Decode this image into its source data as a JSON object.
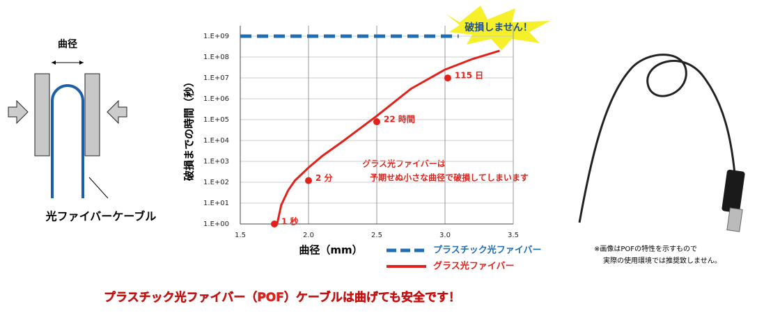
{
  "diagram": {
    "width_label": "曲径",
    "cable_label": "光ファイバーケーブル"
  },
  "chart_data": {
    "type": "line",
    "log_scale": true,
    "grid": true,
    "x_label": "曲径（mm）",
    "y_label": "破損までの時間（秒）",
    "xlim": [
      1.5,
      3.5
    ],
    "xticks": [
      1.5,
      {
        "value": 2,
        "label": "2.0"
      },
      2.5,
      {
        "value": 3,
        "label": "3.0"
      },
      3.5
    ],
    "ylim": [
      1,
      1000000000
    ],
    "yticks": [
      {
        "value": 1,
        "label": "1.E+00"
      },
      {
        "value": 10,
        "label": "1.E+01"
      },
      {
        "value": 100,
        "label": "1.E+02"
      },
      {
        "value": 1000,
        "label": "1.E+03"
      },
      {
        "value": 10000,
        "label": "1.E+04"
      },
      {
        "value": 100000,
        "label": "1.E+05"
      },
      {
        "value": 1000000,
        "label": "1.E+06"
      },
      {
        "value": 10000000,
        "label": "1.E+07"
      },
      {
        "value": 100000000,
        "label": "1.E+08"
      },
      {
        "value": 1000000000,
        "label": "1.E+09"
      }
    ],
    "series": [
      {
        "name": "プラスチック光ファイバー",
        "color": "#1f6db5",
        "dashed": true,
        "x": [
          1.5,
          3.1
        ],
        "values": [
          1000000000,
          1000000000
        ]
      },
      {
        "name": "グラス光ファイバー",
        "color": "#e3211b",
        "dashed": false,
        "x": [
          1.77,
          1.8,
          1.85,
          1.9,
          2.0,
          2.1,
          2.25,
          2.5,
          2.75,
          3.0,
          3.2,
          3.4
        ],
        "values": [
          1,
          8,
          40,
          120,
          500,
          1800,
          9000,
          150000,
          3000000,
          25000000,
          80000000,
          200000000
        ]
      }
    ],
    "points": {
      "color": "#e3211b",
      "x": [
        1.75,
        2.0,
        2.5,
        3.02
      ],
      "values": [
        1,
        120,
        79200,
        9936000
      ],
      "value_labels": [
        "1 秒",
        "2 分",
        "22 時間",
        "115 日"
      ]
    },
    "callout": "破損しません！",
    "annotation": [
      "グラス光ファイバーは",
      "予期せぬ小さな曲径で破損してしまいます"
    ]
  },
  "note": [
    "※画像はPOFの特性を示すもので",
    "実際の使用環境では推奨致しません。"
  ],
  "banner": "プラスチック光ファイバー（POF）ケーブルは曲げても安全です！"
}
